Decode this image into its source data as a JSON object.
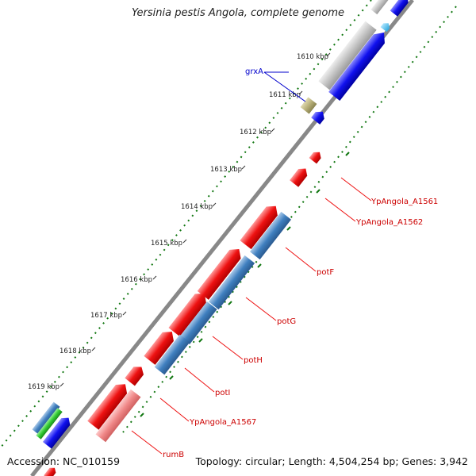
{
  "title": "Yersinia pestis Angola, complete genome",
  "footer": {
    "accession": "Accession: NC_010159",
    "stats": "Topology: circular; Length: 4,504,254 bp; Genes: 3,942"
  },
  "ticks": [
    "1610 kbp",
    "1611 kbp",
    "1612 kbp",
    "1613 kbp",
    "1614 kbp",
    "1615 kbp",
    "1616 kbp",
    "1617 kbp",
    "1618 kbp",
    "1619 kbp"
  ],
  "gene_labels": {
    "grxA": "grxA",
    "a1561": "YpAngola_A1561",
    "a1562": "YpAngola_A1562",
    "potF": "potF",
    "potG": "potG",
    "potH": "potH",
    "potI": "potI",
    "a1567": "YpAngola_A1567",
    "rumB": "rumB"
  },
  "colors": {
    "backbone": "#999999",
    "forward_red": "#ee1111",
    "blue_dark": "#1010ee",
    "steel_blue": "#3f7fbf",
    "pink": "#f08888",
    "gray_feature": "#c4c4c4",
    "olive": "#b8b07a",
    "green": "#33cc33",
    "dot_green": "#117711",
    "label_red": "#cc0000",
    "label_blue": "#0000cc"
  }
}
